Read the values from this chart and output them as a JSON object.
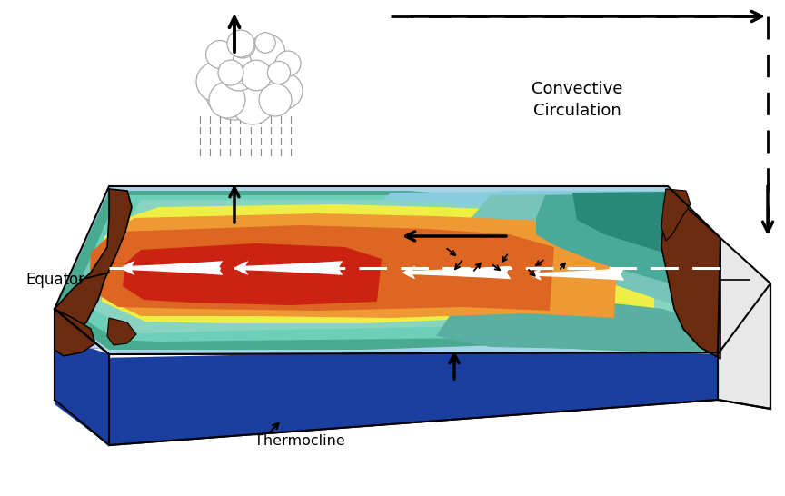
{
  "bg_color": "#ffffff",
  "equator_text": "Equator",
  "thermocline_text": "Thermocline",
  "convective_text": "Convective\nCirculation",
  "colors": {
    "light_blue_bg": "#a8d4e8",
    "teal_bg": "#5aada0",
    "teal_mid": "#6ec2b0",
    "teal_light": "#88ccbb",
    "sky_blue": "#7bbccc",
    "blue_cool": "#6699cc",
    "yellow": "#eeee44",
    "orange": "#ee9933",
    "dark_orange": "#cc6611",
    "red": "#cc2211",
    "brown": "#6b2c10",
    "deep_blue": "#1a3fa0",
    "deep_blue2": "#2255bb",
    "white": "#ffffff",
    "black": "#000000",
    "green_teal": "#3a9980"
  }
}
